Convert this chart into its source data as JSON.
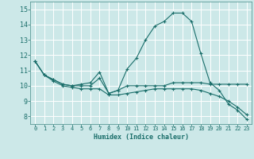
{
  "xlabel": "Humidex (Indice chaleur)",
  "bg_color": "#cce8e8",
  "grid_color": "#ffffff",
  "line_color": "#1a6e6a",
  "x_ticks": [
    0,
    1,
    2,
    3,
    4,
    5,
    6,
    7,
    8,
    9,
    10,
    11,
    12,
    13,
    14,
    15,
    16,
    17,
    18,
    19,
    20,
    21,
    22,
    23
  ],
  "ylim": [
    7.5,
    15.5
  ],
  "xlim": [
    -0.5,
    23.5
  ],
  "yticks": [
    8,
    9,
    10,
    11,
    12,
    13,
    14,
    15
  ],
  "line1_y": [
    11.6,
    10.7,
    10.4,
    10.1,
    10.0,
    10.1,
    10.2,
    10.9,
    9.5,
    9.7,
    10.0,
    10.0,
    10.0,
    10.0,
    10.0,
    10.2,
    10.2,
    10.2,
    10.2,
    10.1,
    10.1,
    10.1,
    10.1,
    10.1
  ],
  "line2_y": [
    11.6,
    10.7,
    10.4,
    10.1,
    10.0,
    10.0,
    10.0,
    10.5,
    9.5,
    9.7,
    11.1,
    11.8,
    13.0,
    13.9,
    14.2,
    14.75,
    14.75,
    14.2,
    12.1,
    10.2,
    9.7,
    8.8,
    8.4,
    7.8
  ],
  "line3_y": [
    11.6,
    10.7,
    10.3,
    10.0,
    9.9,
    9.8,
    9.8,
    9.8,
    9.4,
    9.4,
    9.5,
    9.6,
    9.7,
    9.8,
    9.8,
    9.8,
    9.8,
    9.8,
    9.7,
    9.5,
    9.3,
    9.0,
    8.6,
    8.1
  ]
}
